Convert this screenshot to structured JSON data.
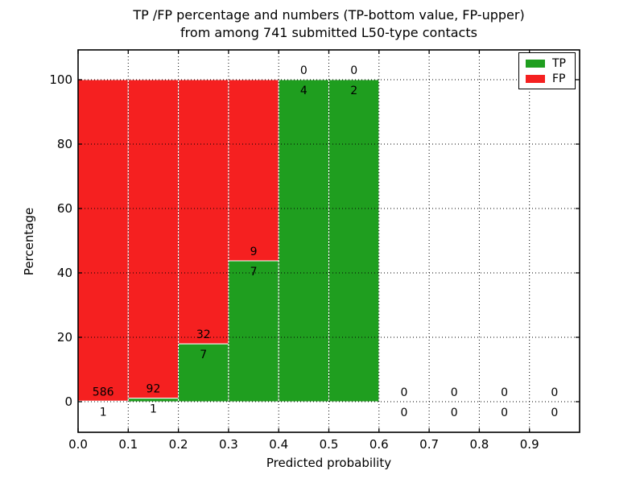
{
  "figure": {
    "background": "#ffffff"
  },
  "chart_data": {
    "type": "bar",
    "stacked": true,
    "title_line1": "TP /FP percentage and numbers (TP-bottom value, FP-upper)",
    "title_line2": "from among 741 submitted L50-type contacts",
    "xlabel": "Predicted probability",
    "ylabel": "Percentage",
    "xlim": [
      0.0,
      1.0
    ],
    "ylim": [
      -9.5,
      109.5
    ],
    "grid_style": "dotted",
    "legend_position": "upper right",
    "x_tick_labels": [
      "0.0",
      "0.1",
      "0.2",
      "0.3",
      "0.4",
      "0.5",
      "0.6",
      "0.7",
      "0.8",
      "0.9"
    ],
    "y_tick_values": [
      0,
      20,
      40,
      60,
      80,
      100
    ],
    "series": [
      {
        "name": "TP",
        "color": "#1f9e1f"
      },
      {
        "name": "FP",
        "color": "#f52020"
      }
    ],
    "total_contacts": 741,
    "bins": [
      {
        "x_start": 0.0,
        "x_end": 0.1,
        "tp_count": 1,
        "fp_count": 586,
        "tp_pct": 0.17,
        "fp_pct": 99.83
      },
      {
        "x_start": 0.1,
        "x_end": 0.2,
        "tp_count": 1,
        "fp_count": 92,
        "tp_pct": 1.08,
        "fp_pct": 98.92
      },
      {
        "x_start": 0.2,
        "x_end": 0.3,
        "tp_count": 7,
        "fp_count": 32,
        "tp_pct": 17.95,
        "fp_pct": 82.05
      },
      {
        "x_start": 0.3,
        "x_end": 0.4,
        "tp_count": 7,
        "fp_count": 9,
        "tp_pct": 43.75,
        "fp_pct": 56.25
      },
      {
        "x_start": 0.4,
        "x_end": 0.5,
        "tp_count": 4,
        "fp_count": 0,
        "tp_pct": 100,
        "fp_pct": 0
      },
      {
        "x_start": 0.5,
        "x_end": 0.6,
        "tp_count": 2,
        "fp_count": 0,
        "tp_pct": 100,
        "fp_pct": 0
      },
      {
        "x_start": 0.6,
        "x_end": 0.7,
        "tp_count": 0,
        "fp_count": 0,
        "tp_pct": null,
        "fp_pct": null
      },
      {
        "x_start": 0.7,
        "x_end": 0.8,
        "tp_count": 0,
        "fp_count": 0,
        "tp_pct": null,
        "fp_pct": null
      },
      {
        "x_start": 0.8,
        "x_end": 0.9,
        "tp_count": 0,
        "fp_count": 0,
        "tp_pct": null,
        "fp_pct": null
      },
      {
        "x_start": 0.9,
        "x_end": 1.0,
        "tp_count": 0,
        "fp_count": 0,
        "tp_pct": null,
        "fp_pct": null
      }
    ]
  }
}
